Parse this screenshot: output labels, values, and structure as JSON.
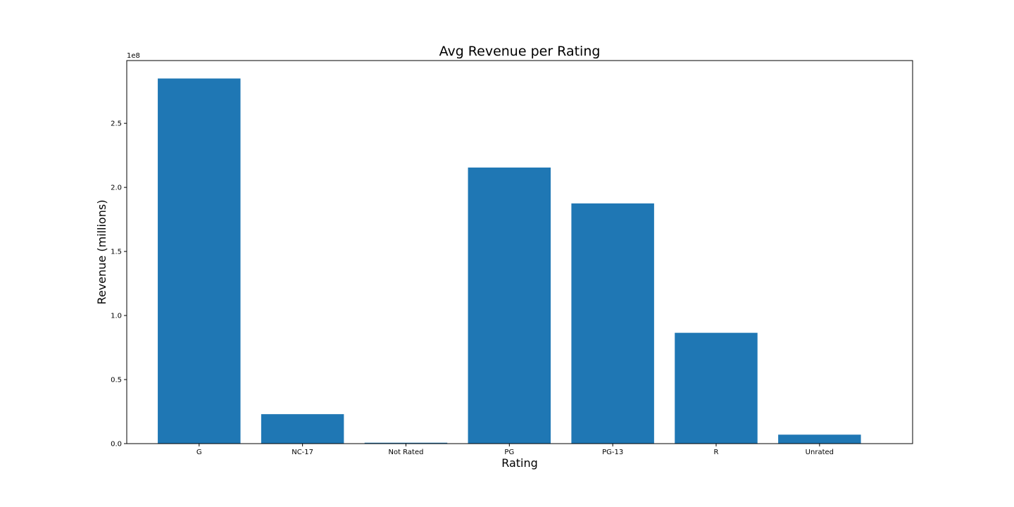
{
  "chart_data": {
    "type": "bar",
    "title": "Avg Revenue per Rating",
    "xlabel": "Rating",
    "ylabel": "Revenue (millions)",
    "y_offset_label": "1e8",
    "categories": [
      "G",
      "NC-17",
      "Not Rated",
      "PG",
      "PG-13",
      "R",
      "Unrated"
    ],
    "values": [
      285000000,
      23000000,
      700000,
      215500000,
      187500000,
      86500000,
      7000000
    ],
    "ylim": [
      0,
      299000000
    ],
    "yticks": [
      0,
      50000000,
      100000000,
      150000000,
      200000000,
      250000000
    ],
    "ytick_labels": [
      "0.0",
      "0.5",
      "1.0",
      "1.5",
      "2.0",
      "2.5"
    ],
    "grid": false,
    "bar_color": "#1f77b4"
  }
}
